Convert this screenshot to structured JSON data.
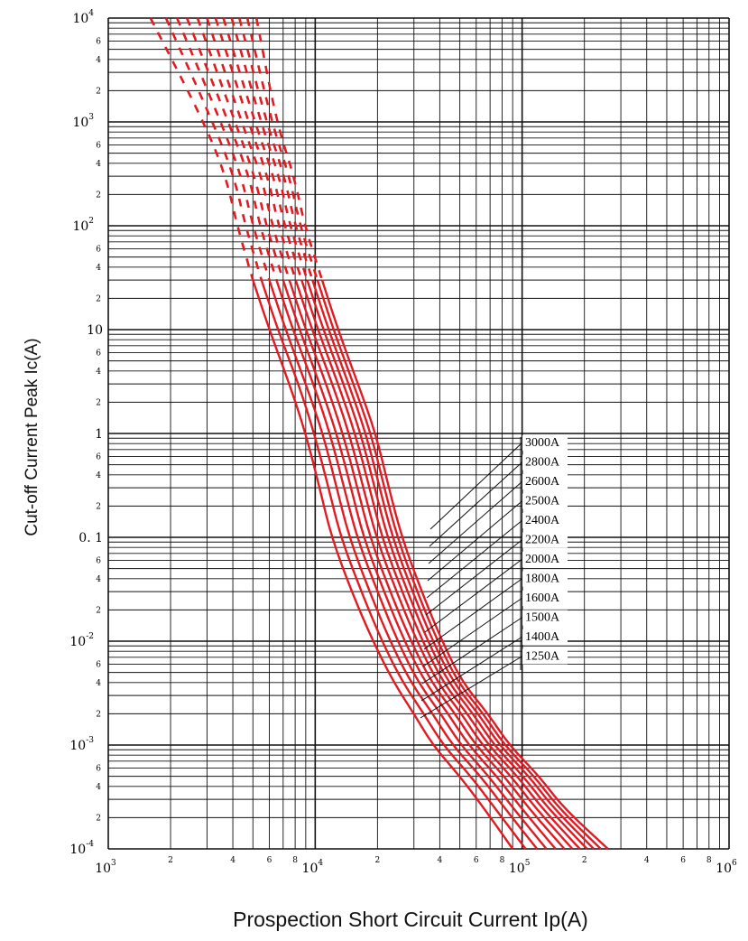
{
  "chart_data": {
    "type": "line",
    "xlabel": "Prospection Short Circuit Current Ip(A)",
    "ylabel": "Cut-off Current Peak Ic(A)",
    "x_scale": "log",
    "y_scale": "log",
    "xlim": [
      1000,
      1000000
    ],
    "ylim": [
      0.0001,
      10000
    ],
    "grid": true,
    "x_ticks": {
      "major": [
        {
          "base": "10",
          "exp": "3",
          "value": 1000
        },
        {
          "base": "10",
          "exp": "4",
          "value": 10000
        },
        {
          "base": "10",
          "exp": "5",
          "value": 100000
        },
        {
          "base": "10",
          "exp": "6",
          "value": 1000000
        }
      ],
      "minor_labels": [
        "2",
        "4",
        "6",
        "8"
      ]
    },
    "y_ticks": {
      "major": [
        {
          "base": "10",
          "exp": "4",
          "text": "",
          "value": 10000
        },
        {
          "base": "10",
          "exp": "3",
          "text": "",
          "value": 1000
        },
        {
          "base": "10",
          "exp": "2",
          "text": "",
          "value": 100
        },
        {
          "base": "",
          "exp": "",
          "text": "10",
          "value": 10
        },
        {
          "base": "",
          "exp": "",
          "text": "1",
          "value": 1
        },
        {
          "base": "",
          "exp": "",
          "text": "0. 1",
          "value": 0.1
        },
        {
          "base": "10",
          "exp": "-2",
          "text": "",
          "value": 0.01
        },
        {
          "base": "10",
          "exp": "-3",
          "text": "",
          "value": 0.001
        },
        {
          "base": "10",
          "exp": "-4",
          "text": "",
          "value": 0.0001
        }
      ],
      "minor_labels": [
        "6",
        "4",
        "2"
      ]
    },
    "series": [
      {
        "name": "1250A",
        "color": "#e11b22",
        "style": "dashed-above-y30",
        "x": [
          1600,
          2900,
          3700,
          4200,
          5000,
          6000,
          7500,
          9000,
          10500,
          12000,
          15000,
          19000,
          24000,
          30000,
          37000,
          50000,
          65000,
          90000
        ],
        "y": [
          10000,
          1000,
          300,
          100,
          30,
          10,
          3,
          1,
          0.3,
          0.1,
          0.03,
          0.01,
          0.004,
          0.002,
          0.001,
          0.0005,
          0.00025,
          0.0001
        ]
      },
      {
        "name": "1400A",
        "color": "#e11b22",
        "style": "dashed-above-y30",
        "x": [
          1900,
          3200,
          4050,
          4600,
          5500,
          6600,
          8300,
          9900,
          11600,
          13300,
          16700,
          21000,
          26500,
          33500,
          41500,
          56500,
          73500,
          104000
        ],
        "y": [
          10000,
          1000,
          300,
          100,
          30,
          10,
          3,
          1,
          0.3,
          0.1,
          0.03,
          0.01,
          0.004,
          0.002,
          0.001,
          0.0005,
          0.00025,
          0.0001
        ]
      },
      {
        "name": "1500A",
        "color": "#e11b22",
        "style": "dashed-above-y30",
        "x": [
          2150,
          3500,
          4400,
          5000,
          6000,
          7200,
          9000,
          10900,
          12700,
          14600,
          18300,
          23000,
          29000,
          37000,
          46000,
          63000,
          82000,
          118000
        ],
        "y": [
          10000,
          1000,
          300,
          100,
          30,
          10,
          3,
          1,
          0.3,
          0.1,
          0.03,
          0.01,
          0.004,
          0.002,
          0.001,
          0.0005,
          0.00025,
          0.0001
        ]
      },
      {
        "name": "1600A",
        "color": "#e11b22",
        "style": "dashed-above-y30",
        "x": [
          2400,
          3800,
          4800,
          5400,
          6500,
          7800,
          9800,
          11800,
          13800,
          15900,
          20000,
          25000,
          31500,
          40500,
          50500,
          69000,
          90000,
          131000
        ],
        "y": [
          10000,
          1000,
          300,
          100,
          30,
          10,
          3,
          1,
          0.3,
          0.1,
          0.03,
          0.01,
          0.004,
          0.002,
          0.001,
          0.0005,
          0.00025,
          0.0001
        ]
      },
      {
        "name": "1800A",
        "color": "#e11b22",
        "style": "dashed-above-y30",
        "x": [
          2700,
          4100,
          5100,
          5800,
          7000,
          8400,
          10500,
          12700,
          14900,
          17100,
          21500,
          27000,
          34000,
          44000,
          55000,
          75500,
          98500,
          145000
        ],
        "y": [
          10000,
          1000,
          300,
          100,
          30,
          10,
          3,
          1,
          0.3,
          0.1,
          0.03,
          0.01,
          0.004,
          0.002,
          0.001,
          0.0005,
          0.00025,
          0.0001
        ]
      },
      {
        "name": "2000A",
        "color": "#e11b22",
        "style": "dashed-above-y30",
        "x": [
          3000,
          4400,
          5500,
          6200,
          7500,
          9000,
          11300,
          13600,
          16000,
          18400,
          23000,
          29000,
          36500,
          47500,
          59500,
          82000,
          107000,
          160000
        ],
        "y": [
          10000,
          1000,
          300,
          100,
          30,
          10,
          3,
          1,
          0.3,
          0.1,
          0.03,
          0.01,
          0.004,
          0.002,
          0.001,
          0.0005,
          0.00025,
          0.0001
        ]
      },
      {
        "name": "2200A",
        "color": "#e11b22",
        "style": "dashed-above-y30",
        "x": [
          3300,
          4750,
          5900,
          6650,
          8050,
          9650,
          12100,
          14600,
          17100,
          19700,
          24700,
          31000,
          39000,
          51000,
          64000,
          88500,
          115500,
          175000
        ],
        "y": [
          10000,
          1000,
          300,
          100,
          30,
          10,
          3,
          1,
          0.3,
          0.1,
          0.03,
          0.01,
          0.004,
          0.002,
          0.001,
          0.0005,
          0.00025,
          0.0001
        ]
      },
      {
        "name": "2400A",
        "color": "#e11b22",
        "style": "dashed-above-y30",
        "x": [
          3600,
          5100,
          6300,
          7100,
          8600,
          10300,
          12900,
          15600,
          18300,
          21000,
          26300,
          33000,
          41500,
          54500,
          68500,
          95000,
          124000,
          190000
        ],
        "y": [
          10000,
          1000,
          300,
          100,
          30,
          10,
          3,
          1,
          0.3,
          0.1,
          0.03,
          0.01,
          0.004,
          0.002,
          0.001,
          0.0005,
          0.00025,
          0.0001
        ]
      },
      {
        "name": "2500A",
        "color": "#e11b22",
        "style": "dashed-above-y30",
        "x": [
          3950,
          5450,
          6700,
          7550,
          9150,
          10950,
          13700,
          16600,
          19400,
          22300,
          27900,
          35000,
          44000,
          58000,
          73000,
          101500,
          132500,
          206000
        ],
        "y": [
          10000,
          1000,
          300,
          100,
          30,
          10,
          3,
          1,
          0.3,
          0.1,
          0.03,
          0.01,
          0.004,
          0.002,
          0.001,
          0.0005,
          0.00025,
          0.0001
        ]
      },
      {
        "name": "2600A",
        "color": "#e11b22",
        "style": "dashed-above-y30",
        "x": [
          4300,
          5800,
          7100,
          8000,
          9700,
          11600,
          14500,
          17600,
          20500,
          23600,
          29500,
          37000,
          46500,
          61500,
          77500,
          108000,
          141000,
          222000
        ],
        "y": [
          10000,
          1000,
          300,
          100,
          30,
          10,
          3,
          1,
          0.3,
          0.1,
          0.03,
          0.01,
          0.004,
          0.002,
          0.001,
          0.0005,
          0.00025,
          0.0001
        ]
      },
      {
        "name": "2800A",
        "color": "#e11b22",
        "style": "dashed-above-y30",
        "x": [
          4700,
          6150,
          7500,
          8450,
          10250,
          12250,
          15300,
          18600,
          21600,
          24900,
          31100,
          39000,
          49000,
          65000,
          82000,
          114500,
          149500,
          240000
        ],
        "y": [
          10000,
          1000,
          300,
          100,
          30,
          10,
          3,
          1,
          0.3,
          0.1,
          0.03,
          0.01,
          0.004,
          0.002,
          0.001,
          0.0005,
          0.00025,
          0.0001
        ]
      },
      {
        "name": "3000A",
        "color": "#e11b22",
        "style": "dashed-above-y30",
        "x": [
          5200,
          6500,
          7900,
          8900,
          10800,
          12900,
          16100,
          19600,
          22700,
          26200,
          32700,
          41000,
          51500,
          68500,
          86500,
          121000,
          158000,
          260000
        ],
        "y": [
          10000,
          1000,
          300,
          100,
          30,
          10,
          3,
          1,
          0.3,
          0.1,
          0.03,
          0.01,
          0.004,
          0.002,
          0.001,
          0.0005,
          0.00025,
          0.0001
        ]
      }
    ],
    "rating_labels": [
      "3000A",
      "2800A",
      "2600A",
      "2500A",
      "2400A",
      "2200A",
      "2000A",
      "1800A",
      "1600A",
      "1500A",
      "1400A",
      "1250A"
    ]
  }
}
